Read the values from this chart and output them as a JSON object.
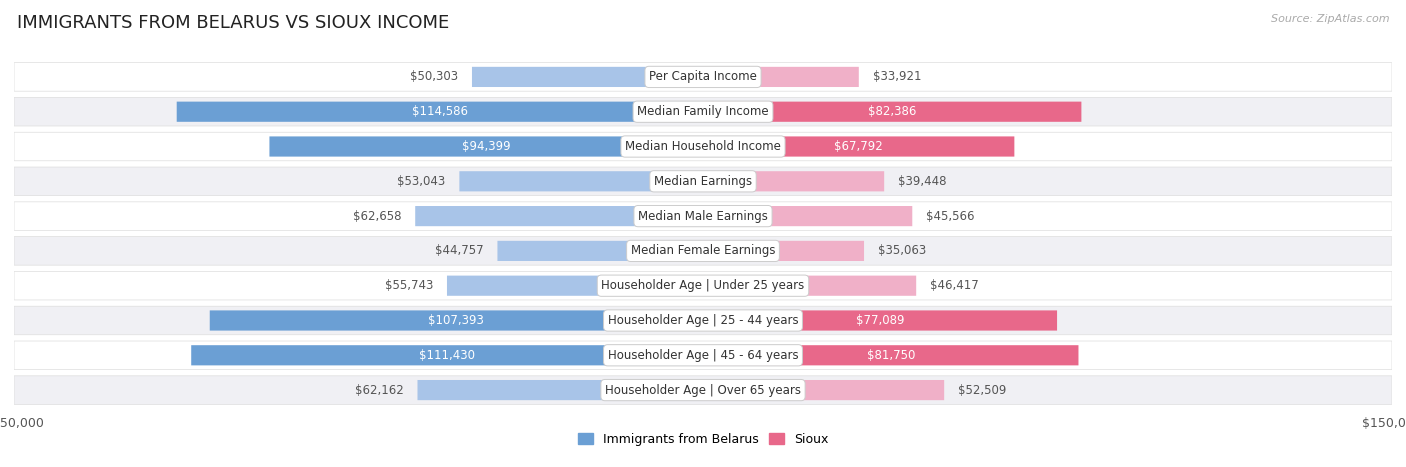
{
  "title": "IMMIGRANTS FROM BELARUS VS SIOUX INCOME",
  "source": "Source: ZipAtlas.com",
  "categories": [
    "Per Capita Income",
    "Median Family Income",
    "Median Household Income",
    "Median Earnings",
    "Median Male Earnings",
    "Median Female Earnings",
    "Householder Age | Under 25 years",
    "Householder Age | 25 - 44 years",
    "Householder Age | 45 - 64 years",
    "Householder Age | Over 65 years"
  ],
  "belarus_values": [
    50303,
    114586,
    94399,
    53043,
    62658,
    44757,
    55743,
    107393,
    111430,
    62162
  ],
  "sioux_values": [
    33921,
    82386,
    67792,
    39448,
    45566,
    35063,
    46417,
    77089,
    81750,
    52509
  ],
  "belarus_labels": [
    "$50,303",
    "$114,586",
    "$94,399",
    "$53,043",
    "$62,658",
    "$44,757",
    "$55,743",
    "$107,393",
    "$111,430",
    "$62,162"
  ],
  "sioux_labels": [
    "$33,921",
    "$82,386",
    "$67,792",
    "$39,448",
    "$45,566",
    "$35,063",
    "$46,417",
    "$77,089",
    "$81,750",
    "$52,509"
  ],
  "max_value": 150000,
  "belarus_color_light": "#a8c4e8",
  "belarus_color_dark": "#6b9fd4",
  "sioux_color_light": "#f0b0c8",
  "sioux_color_dark": "#e8688a",
  "label_color_outside": "#777777",
  "label_color_inside": "#ffffff",
  "row_bg_color": "#f0f0f4",
  "row_alt_color": "#ffffff",
  "label_fontsize": 8.5,
  "title_fontsize": 13,
  "category_fontsize": 8.5,
  "source_fontsize": 8
}
